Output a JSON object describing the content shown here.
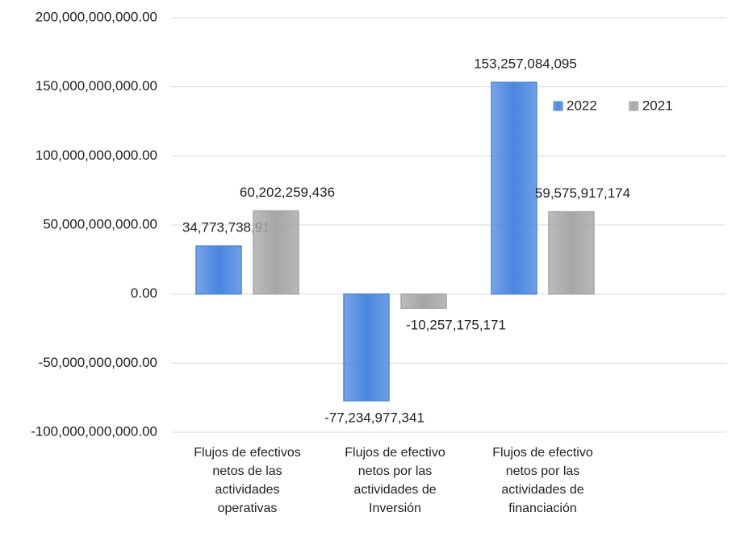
{
  "chart_data": {
    "type": "bar",
    "categories": [
      "Flujos de efectivos\nnetos de las\nactividades\noperativas",
      "Flujos de efectivo\nnetos por las\nactividades de\nInversión",
      "Flujos de efectivo\nnetos por las\nactividades de\nfinanciación"
    ],
    "series": [
      {
        "name": "2022",
        "color": "#4a86e0",
        "values": [
          34773738917,
          -77234977341,
          153257084095
        ],
        "value_labels": [
          "34,773,738,917",
          "-77,234,977,341",
          "153,257,084,095"
        ]
      },
      {
        "name": "2021",
        "color": "#a6a6a6",
        "values": [
          60202259436,
          -10257175171,
          59575917174
        ],
        "value_labels": [
          "60,202,259,436",
          "-10,257,175,171",
          "59,575,917,174"
        ]
      }
    ],
    "ylim": [
      -100000000000,
      200000000000
    ],
    "yticks": [
      {
        "value": -100000000000,
        "label": "-100,000,000,000.00"
      },
      {
        "value": -50000000000,
        "label": "-50,000,000,000.00"
      },
      {
        "value": 0,
        "label": "0.00"
      },
      {
        "value": 50000000000,
        "label": "50,000,000,000.00"
      },
      {
        "value": 100000000000,
        "label": "100,000,000,000.00"
      },
      {
        "value": 150000000000,
        "label": "150,000,000,000.00"
      },
      {
        "value": 200000000000,
        "label": "200,000,000,000.00"
      }
    ],
    "grid": true,
    "legend": "top-right"
  }
}
